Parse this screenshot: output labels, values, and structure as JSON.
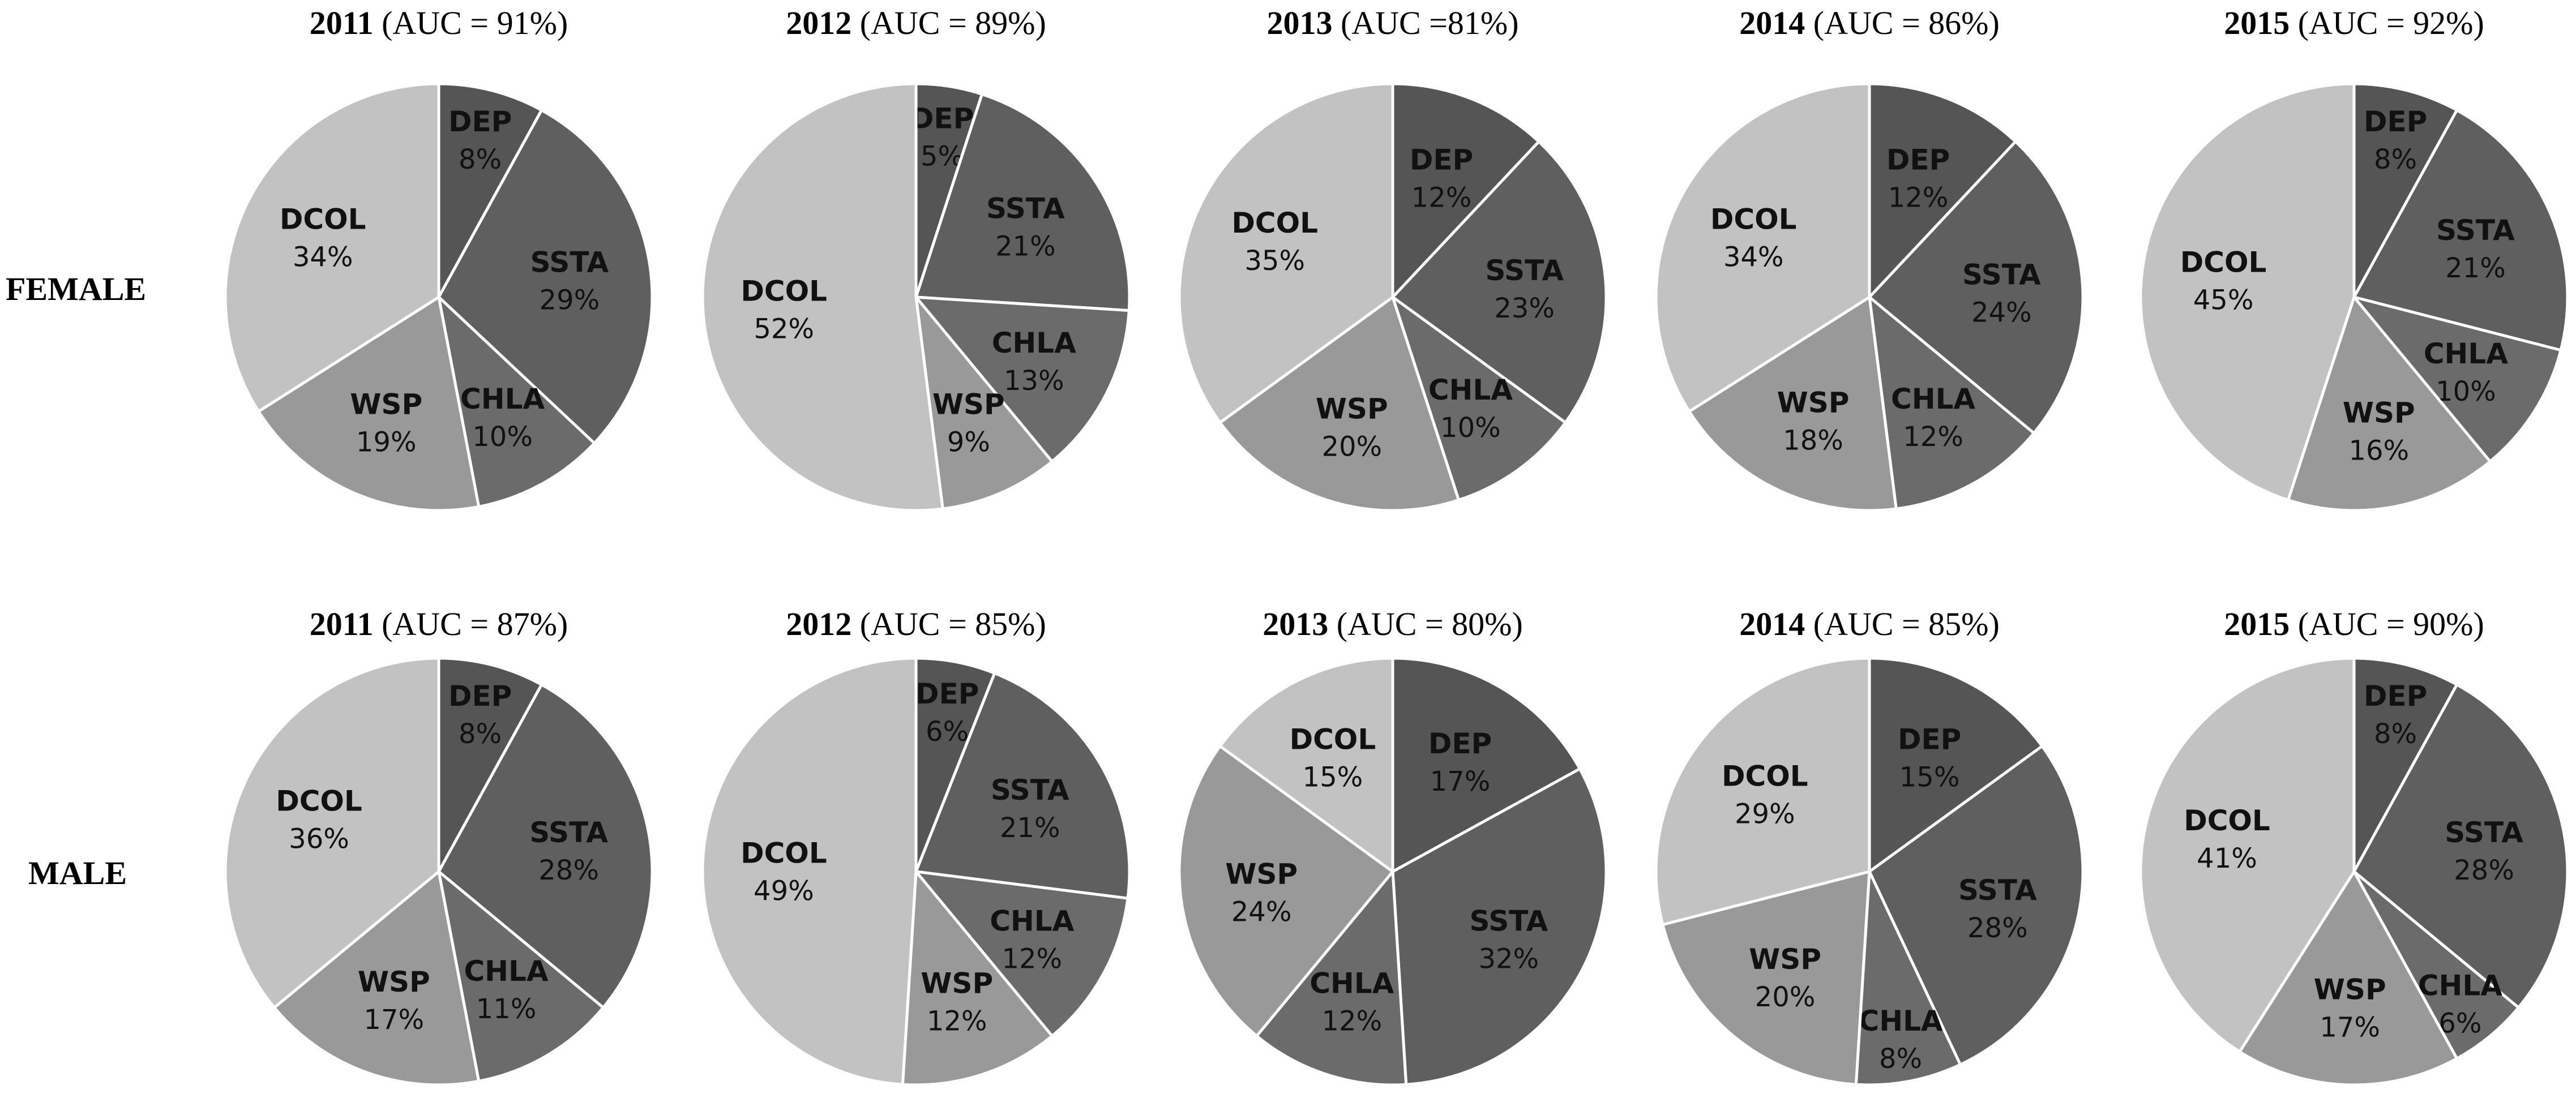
{
  "row_labels": {
    "female": "FEMALE",
    "male": "MALE"
  },
  "chart_data": [
    {
      "type": "pie",
      "group": "FEMALE",
      "year": "2011",
      "auc_text": "(AUC = 91%)",
      "categories": [
        "DEP",
        "SSTA",
        "CHLA",
        "WSP",
        "DCOL"
      ],
      "values": [
        8,
        29,
        10,
        19,
        34
      ],
      "labels": [
        "8%",
        "29%",
        "10%",
        "19%",
        "34%"
      ],
      "colors": [
        "#555555",
        "#5f5f5f",
        "#6b6b6b",
        "#999999",
        "#c2c2c2"
      ]
    },
    {
      "type": "pie",
      "group": "FEMALE",
      "year": "2012",
      "auc_text": "(AUC = 89%)",
      "categories": [
        "DEP",
        "SSTA",
        "CHLA",
        "WSP",
        "DCOL"
      ],
      "values": [
        5,
        21,
        13,
        9,
        52
      ],
      "labels": [
        "5%",
        "21%",
        "13%",
        "9%",
        "52%"
      ],
      "colors": [
        "#555555",
        "#5f5f5f",
        "#6b6b6b",
        "#999999",
        "#c2c2c2"
      ]
    },
    {
      "type": "pie",
      "group": "FEMALE",
      "year": "2013",
      "auc_text": "(AUC =81%)",
      "categories": [
        "DEP",
        "SSTA",
        "CHLA",
        "WSP",
        "DCOL"
      ],
      "values": [
        12,
        23,
        10,
        20,
        35
      ],
      "labels": [
        "12%",
        "23%",
        "10%",
        "20%",
        "35%"
      ],
      "colors": [
        "#555555",
        "#5f5f5f",
        "#6b6b6b",
        "#999999",
        "#c2c2c2"
      ]
    },
    {
      "type": "pie",
      "group": "FEMALE",
      "year": "2014",
      "auc_text": "(AUC = 86%)",
      "categories": [
        "DEP",
        "SSTA",
        "CHLA",
        "WSP",
        "DCOL"
      ],
      "values": [
        12,
        24,
        12,
        18,
        34
      ],
      "labels": [
        "12%",
        "24%",
        "12%",
        "18%",
        "34%"
      ],
      "colors": [
        "#555555",
        "#5f5f5f",
        "#6b6b6b",
        "#999999",
        "#c2c2c2"
      ]
    },
    {
      "type": "pie",
      "group": "FEMALE",
      "year": "2015",
      "auc_text": "(AUC = 92%)",
      "categories": [
        "DEP",
        "SSTA",
        "CHLA",
        "WSP",
        "DCOL"
      ],
      "values": [
        8,
        21,
        10,
        16,
        45
      ],
      "labels": [
        "8%",
        "21%",
        "10%",
        "16%",
        "45%"
      ],
      "colors": [
        "#555555",
        "#5f5f5f",
        "#6b6b6b",
        "#999999",
        "#c2c2c2"
      ]
    },
    {
      "type": "pie",
      "group": "MALE",
      "year": "2011",
      "auc_text": "(AUC = 87%)",
      "categories": [
        "DEP",
        "SSTA",
        "CHLA",
        "WSP",
        "DCOL"
      ],
      "values": [
        8,
        28,
        11,
        17,
        36
      ],
      "labels": [
        "8%",
        "28%",
        "11%",
        "17%",
        "36%"
      ],
      "colors": [
        "#555555",
        "#5f5f5f",
        "#6b6b6b",
        "#999999",
        "#c2c2c2"
      ]
    },
    {
      "type": "pie",
      "group": "MALE",
      "year": "2012",
      "auc_text": "(AUC = 85%)",
      "categories": [
        "DEP",
        "SSTA",
        "CHLA",
        "WSP",
        "DCOL"
      ],
      "values": [
        6,
        21,
        12,
        12,
        49
      ],
      "labels": [
        "6%",
        "21%",
        "12%",
        "12%",
        "49%"
      ],
      "colors": [
        "#555555",
        "#5f5f5f",
        "#6b6b6b",
        "#999999",
        "#c2c2c2"
      ]
    },
    {
      "type": "pie",
      "group": "MALE",
      "year": "2013",
      "auc_text": "(AUC = 80%)",
      "categories": [
        "DEP",
        "SSTA",
        "CHLA",
        "WSP",
        "DCOL"
      ],
      "values": [
        17,
        32,
        12,
        24,
        15
      ],
      "labels": [
        "17%",
        "32%",
        "12%",
        "24%",
        "15%"
      ],
      "colors": [
        "#555555",
        "#5f5f5f",
        "#6b6b6b",
        "#999999",
        "#c2c2c2"
      ]
    },
    {
      "type": "pie",
      "group": "MALE",
      "year": "2014",
      "auc_text": "(AUC = 85%)",
      "categories": [
        "DEP",
        "SSTA",
        "CHLA",
        "WSP",
        "DCOL"
      ],
      "values": [
        15,
        28,
        8,
        20,
        29
      ],
      "labels": [
        "15%",
        "28%",
        "8%",
        "20%",
        "29%"
      ],
      "colors": [
        "#555555",
        "#5f5f5f",
        "#6b6b6b",
        "#999999",
        "#c2c2c2"
      ]
    },
    {
      "type": "pie",
      "group": "MALE",
      "year": "2015",
      "auc_text": "(AUC = 90%)",
      "categories": [
        "DEP",
        "SSTA",
        "CHLA",
        "WSP",
        "DCOL"
      ],
      "values": [
        8,
        28,
        6,
        17,
        41
      ],
      "labels": [
        "8%",
        "28%",
        "6%",
        "17%",
        "41%"
      ],
      "colors": [
        "#555555",
        "#5f5f5f",
        "#6b6b6b",
        "#999999",
        "#c2c2c2"
      ]
    }
  ]
}
